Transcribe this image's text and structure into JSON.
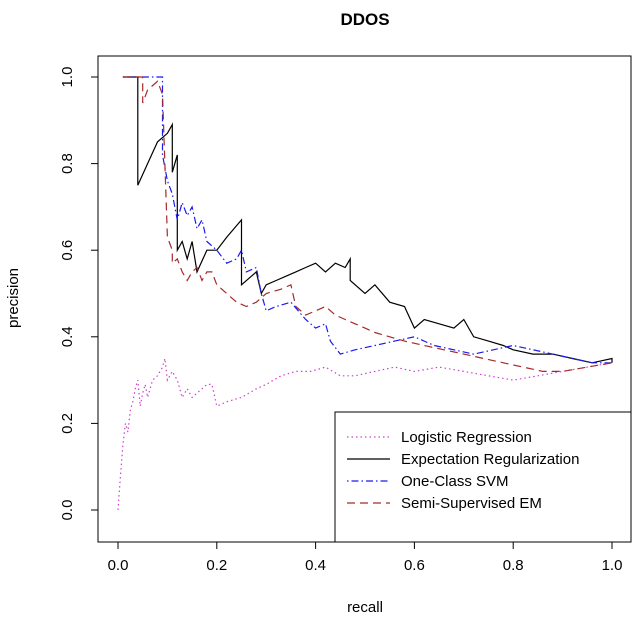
{
  "chart_data": {
    "type": "line",
    "title": "DDOS",
    "xlabel": "recall",
    "ylabel": "precision",
    "xlim": [
      0,
      1
    ],
    "ylim": [
      0,
      1
    ],
    "xticks": [
      "0.0",
      "0.2",
      "0.4",
      "0.6",
      "0.8",
      "1.0"
    ],
    "yticks": [
      "0.0",
      "0.2",
      "0.4",
      "0.6",
      "0.8",
      "1.0"
    ],
    "grid": false,
    "legend_position": "bottom-right",
    "series": [
      {
        "name": "Logistic Regression",
        "color": "#cc44cc",
        "dash": "dotted",
        "points": [
          [
            0,
            0
          ],
          [
            0.005,
            0.08
          ],
          [
            0.01,
            0.15
          ],
          [
            0.015,
            0.2
          ],
          [
            0.02,
            0.18
          ],
          [
            0.025,
            0.23
          ],
          [
            0.03,
            0.25
          ],
          [
            0.035,
            0.28
          ],
          [
            0.04,
            0.3
          ],
          [
            0.045,
            0.24
          ],
          [
            0.05,
            0.27
          ],
          [
            0.055,
            0.29
          ],
          [
            0.06,
            0.26
          ],
          [
            0.065,
            0.28
          ],
          [
            0.07,
            0.3
          ],
          [
            0.08,
            0.31
          ],
          [
            0.09,
            0.33
          ],
          [
            0.095,
            0.35
          ],
          [
            0.1,
            0.3
          ],
          [
            0.11,
            0.32
          ],
          [
            0.12,
            0.3
          ],
          [
            0.13,
            0.26
          ],
          [
            0.14,
            0.28
          ],
          [
            0.15,
            0.26
          ],
          [
            0.16,
            0.27
          ],
          [
            0.17,
            0.28
          ],
          [
            0.18,
            0.29
          ],
          [
            0.19,
            0.29
          ],
          [
            0.2,
            0.24
          ],
          [
            0.22,
            0.25
          ],
          [
            0.25,
            0.26
          ],
          [
            0.28,
            0.28
          ],
          [
            0.3,
            0.29
          ],
          [
            0.33,
            0.31
          ],
          [
            0.36,
            0.32
          ],
          [
            0.39,
            0.32
          ],
          [
            0.42,
            0.33
          ],
          [
            0.45,
            0.31
          ],
          [
            0.48,
            0.31
          ],
          [
            0.52,
            0.32
          ],
          [
            0.56,
            0.33
          ],
          [
            0.6,
            0.32
          ],
          [
            0.65,
            0.33
          ],
          [
            0.7,
            0.32
          ],
          [
            0.75,
            0.31
          ],
          [
            0.8,
            0.3
          ],
          [
            0.85,
            0.31
          ],
          [
            0.9,
            0.32
          ],
          [
            0.95,
            0.33
          ],
          [
            1.0,
            0.34
          ]
        ]
      },
      {
        "name": "Expectation Regularization",
        "color": "#000000",
        "dash": "solid",
        "points": [
          [
            0.01,
            1.0
          ],
          [
            0.04,
            1.0
          ],
          [
            0.04,
            0.75
          ],
          [
            0.06,
            0.8
          ],
          [
            0.08,
            0.85
          ],
          [
            0.1,
            0.87
          ],
          [
            0.11,
            0.89
          ],
          [
            0.11,
            0.78
          ],
          [
            0.12,
            0.82
          ],
          [
            0.12,
            0.6
          ],
          [
            0.13,
            0.62
          ],
          [
            0.14,
            0.58
          ],
          [
            0.15,
            0.62
          ],
          [
            0.16,
            0.55
          ],
          [
            0.18,
            0.6
          ],
          [
            0.2,
            0.6
          ],
          [
            0.22,
            0.63
          ],
          [
            0.25,
            0.67
          ],
          [
            0.25,
            0.52
          ],
          [
            0.27,
            0.54
          ],
          [
            0.28,
            0.55
          ],
          [
            0.29,
            0.5
          ],
          [
            0.3,
            0.52
          ],
          [
            0.32,
            0.53
          ],
          [
            0.34,
            0.54
          ],
          [
            0.36,
            0.55
          ],
          [
            0.38,
            0.56
          ],
          [
            0.4,
            0.57
          ],
          [
            0.42,
            0.55
          ],
          [
            0.44,
            0.57
          ],
          [
            0.46,
            0.56
          ],
          [
            0.47,
            0.58
          ],
          [
            0.47,
            0.53
          ],
          [
            0.5,
            0.5
          ],
          [
            0.52,
            0.52
          ],
          [
            0.55,
            0.48
          ],
          [
            0.58,
            0.47
          ],
          [
            0.6,
            0.42
          ],
          [
            0.62,
            0.44
          ],
          [
            0.65,
            0.43
          ],
          [
            0.68,
            0.42
          ],
          [
            0.7,
            0.44
          ],
          [
            0.72,
            0.4
          ],
          [
            0.75,
            0.39
          ],
          [
            0.78,
            0.38
          ],
          [
            0.8,
            0.37
          ],
          [
            0.84,
            0.36
          ],
          [
            0.88,
            0.36
          ],
          [
            0.92,
            0.35
          ],
          [
            0.96,
            0.34
          ],
          [
            1.0,
            0.35
          ],
          [
            1.0,
            0.34
          ]
        ]
      },
      {
        "name": "One-Class SVM",
        "color": "#1a1aee",
        "dash": "dotdash",
        "points": [
          [
            0.01,
            1.0
          ],
          [
            0.09,
            1.0
          ],
          [
            0.09,
            0.82
          ],
          [
            0.1,
            0.76
          ],
          [
            0.11,
            0.73
          ],
          [
            0.12,
            0.67
          ],
          [
            0.13,
            0.71
          ],
          [
            0.14,
            0.68
          ],
          [
            0.15,
            0.7
          ],
          [
            0.16,
            0.65
          ],
          [
            0.17,
            0.67
          ],
          [
            0.18,
            0.62
          ],
          [
            0.2,
            0.6
          ],
          [
            0.22,
            0.57
          ],
          [
            0.24,
            0.58
          ],
          [
            0.25,
            0.6
          ],
          [
            0.26,
            0.55
          ],
          [
            0.28,
            0.56
          ],
          [
            0.29,
            0.5
          ],
          [
            0.3,
            0.46
          ],
          [
            0.32,
            0.47
          ],
          [
            0.35,
            0.48
          ],
          [
            0.38,
            0.44
          ],
          [
            0.4,
            0.42
          ],
          [
            0.42,
            0.43
          ],
          [
            0.43,
            0.39
          ],
          [
            0.45,
            0.36
          ],
          [
            0.48,
            0.37
          ],
          [
            0.52,
            0.38
          ],
          [
            0.56,
            0.39
          ],
          [
            0.6,
            0.4
          ],
          [
            0.64,
            0.38
          ],
          [
            0.68,
            0.37
          ],
          [
            0.72,
            0.36
          ],
          [
            0.76,
            0.37
          ],
          [
            0.8,
            0.38
          ],
          [
            0.84,
            0.37
          ],
          [
            0.88,
            0.36
          ],
          [
            0.92,
            0.35
          ],
          [
            0.96,
            0.34
          ],
          [
            1.0,
            0.34
          ]
        ]
      },
      {
        "name": "Semi-Supervised EM",
        "color": "#a52a2a",
        "dash": "dashed",
        "points": [
          [
            0.01,
            1.0
          ],
          [
            0.05,
            1.0
          ],
          [
            0.05,
            0.94
          ],
          [
            0.06,
            0.97
          ],
          [
            0.08,
            0.99
          ],
          [
            0.09,
            0.96
          ],
          [
            0.1,
            0.63
          ],
          [
            0.11,
            0.6
          ],
          [
            0.11,
            0.57
          ],
          [
            0.12,
            0.58
          ],
          [
            0.13,
            0.55
          ],
          [
            0.14,
            0.53
          ],
          [
            0.15,
            0.55
          ],
          [
            0.16,
            0.56
          ],
          [
            0.17,
            0.53
          ],
          [
            0.18,
            0.55
          ],
          [
            0.19,
            0.55
          ],
          [
            0.2,
            0.52
          ],
          [
            0.22,
            0.5
          ],
          [
            0.24,
            0.48
          ],
          [
            0.26,
            0.47
          ],
          [
            0.28,
            0.48
          ],
          [
            0.3,
            0.5
          ],
          [
            0.33,
            0.51
          ],
          [
            0.35,
            0.52
          ],
          [
            0.36,
            0.47
          ],
          [
            0.38,
            0.45
          ],
          [
            0.4,
            0.46
          ],
          [
            0.42,
            0.47
          ],
          [
            0.44,
            0.45
          ],
          [
            0.46,
            0.44
          ],
          [
            0.48,
            0.43
          ],
          [
            0.5,
            0.42
          ],
          [
            0.52,
            0.41
          ],
          [
            0.55,
            0.4
          ],
          [
            0.58,
            0.39
          ],
          [
            0.62,
            0.38
          ],
          [
            0.66,
            0.37
          ],
          [
            0.7,
            0.36
          ],
          [
            0.74,
            0.35
          ],
          [
            0.78,
            0.34
          ],
          [
            0.82,
            0.33
          ],
          [
            0.86,
            0.32
          ],
          [
            0.9,
            0.32
          ],
          [
            0.95,
            0.33
          ],
          [
            1.0,
            0.34
          ]
        ]
      }
    ]
  }
}
